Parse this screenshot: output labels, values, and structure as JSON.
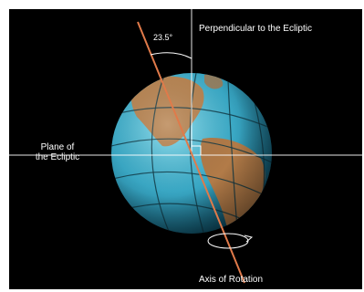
{
  "labels": {
    "perpendicular": "Perpendicular to the Ecliptic",
    "plane_line1": "Plane of",
    "plane_line2": "the Ecliptic",
    "axis": "Axis of Rotation",
    "angle": "23.5°"
  },
  "colors": {
    "background": "#000000",
    "ocean": "#3fb4cf",
    "land": "#b07a4a",
    "grid": "#123a46",
    "axis": "#e07a4a",
    "reference_lines": "#ffffff"
  }
}
